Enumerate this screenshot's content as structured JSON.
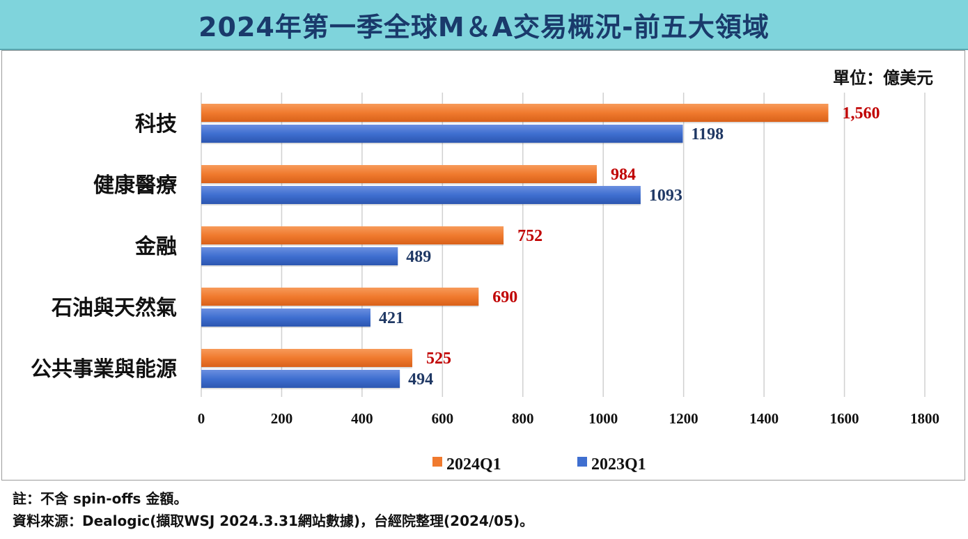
{
  "title": "2024年第一季全球M＆A交易概況-前五大領域",
  "unit": "單位：億美元",
  "notes": {
    "note": "註：不含 spin-offs 金額。",
    "source": "資料來源：Dealogic(擷取WSJ 2024.3.31網站數據)，台經院整理(2024/05)。"
  },
  "colors": {
    "series_2024": "#f07a2e",
    "series_2023": "#3f6fd0",
    "label_2024": "#c00000",
    "label_2023": "#1f3864"
  },
  "chart_data": {
    "type": "bar",
    "orientation": "horizontal",
    "categories": [
      "科技",
      "健康醫療",
      "金融",
      "石油與天然氣",
      "公共事業與能源"
    ],
    "series": [
      {
        "name": "2024Q1",
        "values": [
          1560,
          984,
          752,
          690,
          525
        ],
        "labels": [
          "1,560",
          "984",
          "752",
          "690",
          "525"
        ]
      },
      {
        "name": "2023Q1",
        "values": [
          1198,
          1093,
          489,
          421,
          494
        ],
        "labels": [
          "1198",
          "1093",
          "489",
          "421",
          "494"
        ]
      }
    ],
    "xlim": [
      0,
      1800
    ],
    "xticks": [
      0,
      200,
      400,
      600,
      800,
      1000,
      1200,
      1400,
      1600,
      1800
    ],
    "grid": true,
    "legend_position": "bottom"
  }
}
